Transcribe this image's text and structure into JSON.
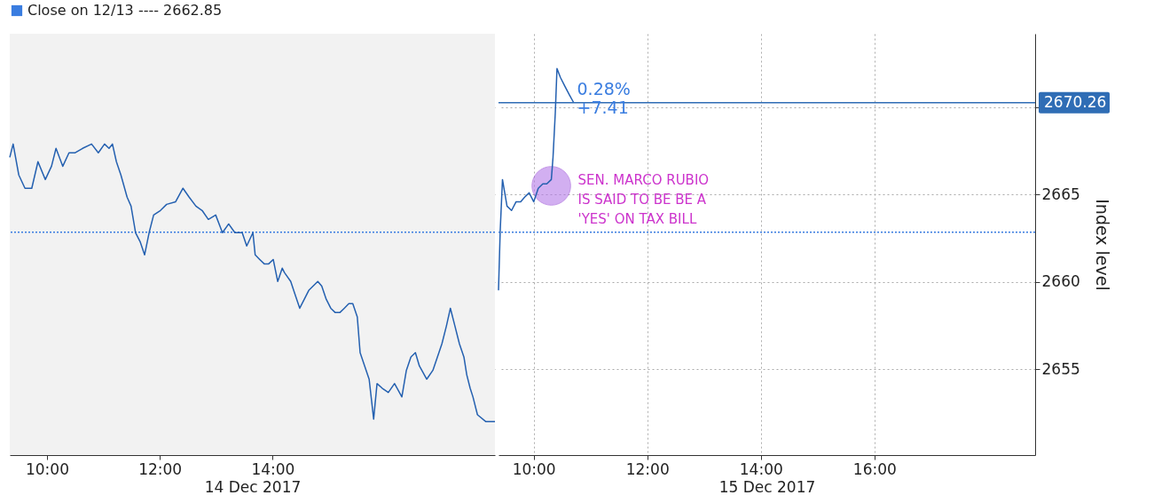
{
  "chart_data": [
    {
      "type": "line",
      "xlabel": "14 Dec 2017",
      "x": [
        9.34,
        9.4,
        9.5,
        9.61,
        9.73,
        9.84,
        9.97,
        10.08,
        10.16,
        10.28,
        10.39,
        10.5,
        10.63,
        10.79,
        10.91,
        11.02,
        11.1,
        11.16,
        11.23,
        11.31,
        11.42,
        11.49,
        11.57,
        11.65,
        11.73,
        11.81,
        11.89,
        12.01,
        12.12,
        12.28,
        12.41,
        12.52,
        12.64,
        12.75,
        12.86,
        12.99,
        13.11,
        13.22,
        13.33,
        13.46,
        13.54,
        13.65,
        13.69,
        13.77,
        13.85,
        13.93,
        14.01,
        14.09,
        14.17,
        14.21,
        14.32,
        14.4,
        14.48,
        14.64,
        14.8,
        14.87,
        14.95,
        15.03,
        15.11,
        15.19,
        15.27,
        15.35,
        15.42,
        15.5,
        15.55,
        15.63,
        15.71,
        15.79,
        15.85,
        15.94,
        16.05,
        16.16,
        16.29,
        16.37,
        16.45,
        16.53,
        16.6,
        16.73,
        16.84,
        16.92,
        17.0,
        17.08,
        17.15,
        17.23,
        17.31,
        17.39,
        17.44,
        17.5,
        17.55,
        17.63,
        17.78,
        17.94
      ],
      "series": [
        {
          "color": "#2460b0",
          "values": [
            2667.13,
            2667.89,
            2666.12,
            2665.36,
            2665.36,
            2666.88,
            2665.86,
            2666.62,
            2667.64,
            2666.62,
            2667.39,
            2667.39,
            2667.64,
            2667.89,
            2667.39,
            2667.89,
            2667.64,
            2667.89,
            2666.88,
            2666.12,
            2664.85,
            2664.34,
            2662.82,
            2662.31,
            2661.55,
            2662.82,
            2663.83,
            2664.09,
            2664.44,
            2664.59,
            2665.36,
            2664.85,
            2664.34,
            2664.09,
            2663.58,
            2663.83,
            2662.82,
            2663.32,
            2662.82,
            2662.82,
            2662.06,
            2662.82,
            2661.55,
            2661.29,
            2661.04,
            2661.04,
            2661.29,
            2660.03,
            2660.79,
            2660.53,
            2660.03,
            2659.26,
            2658.5,
            2659.52,
            2660.03,
            2659.77,
            2659.01,
            2658.5,
            2658.25,
            2658.25,
            2658.5,
            2658.76,
            2658.76,
            2658.0,
            2655.96,
            2655.2,
            2654.44,
            2652.16,
            2654.19,
            2653.93,
            2653.68,
            2654.19,
            2653.43,
            2654.95,
            2655.71,
            2655.96,
            2655.2,
            2654.44,
            2654.95,
            2655.71,
            2656.47,
            2657.49,
            2658.5,
            2657.49,
            2656.47,
            2655.71,
            2654.7,
            2653.93,
            2653.43,
            2652.41,
            2652.01,
            2652.01
          ]
        }
      ],
      "xlim": [
        9.34,
        17.94
      ],
      "ylim": [
        2650.1,
        2674.2
      ],
      "xticks": [
        {
          "value": 10,
          "label": "10:00"
        },
        {
          "value": 12,
          "label": "12:00"
        },
        {
          "value": 14,
          "label": "14:00"
        }
      ],
      "yticks": [
        2655,
        2660,
        2665,
        {
          "value": 2670,
          "label": null
        }
      ],
      "tick_labels": "x",
      "grid": true,
      "bands": [
        {
          "axis": "x",
          "from": 9.34,
          "to": 17.94,
          "color": "#f2f2f2"
        }
      ],
      "ref_lines": [
        {
          "axis": "y",
          "value": 2662.85,
          "label": "Close on 12/13 ---- 2662.85",
          "color": "#3a7de0",
          "line_style": "dotted"
        }
      ]
    },
    {
      "type": "line",
      "xlabel": "15 Dec 2017",
      "ylabel": "Index level",
      "x": [
        9.38,
        9.41,
        9.45,
        9.53,
        9.61,
        9.69,
        9.77,
        9.84,
        9.92,
        10.0,
        10.08,
        10.16,
        10.23,
        10.31,
        10.34,
        10.38,
        10.41,
        10.47,
        10.55,
        10.63,
        10.7
      ],
      "series": [
        {
          "color": "#2460b0",
          "values": [
            2659.52,
            2662.93,
            2665.86,
            2664.34,
            2664.09,
            2664.59,
            2664.59,
            2664.85,
            2665.1,
            2664.59,
            2665.36,
            2665.61,
            2665.61,
            2665.86,
            2667.13,
            2669.67,
            2672.21,
            2671.7,
            2671.19,
            2670.69,
            2670.28
          ]
        }
      ],
      "xlim": [
        9.38,
        18.83
      ],
      "ylim": [
        2650.1,
        2674.2
      ],
      "xticks": [
        {
          "value": 10,
          "label": "10:00"
        },
        {
          "value": 12,
          "label": "12:00"
        },
        {
          "value": 14,
          "label": "14:00"
        },
        {
          "value": 16,
          "label": "16:00"
        }
      ],
      "yticks": [
        2655,
        2660,
        2665,
        {
          "value": 2670,
          "label": null
        }
      ],
      "grid": true,
      "ref_lines": [
        {
          "axis": "y",
          "value": 2662.85,
          "color": "#3a7de0",
          "line_style": "dotted"
        },
        {
          "axis": "y",
          "value": 2670.26,
          "label": "2670.26",
          "color": "#2f6db5",
          "line_style": "solid"
        }
      ],
      "annotations": [
        {
          "text": "0.28% +7.41",
          "x": 10.7,
          "y": 2670.28
        },
        {
          "text": "SEN. MARCO RUBIO IS SAID TO BE BE A 'YES' ON TAX BILL",
          "x": 10.31,
          "y": 2665.5
        }
      ]
    }
  ]
}
